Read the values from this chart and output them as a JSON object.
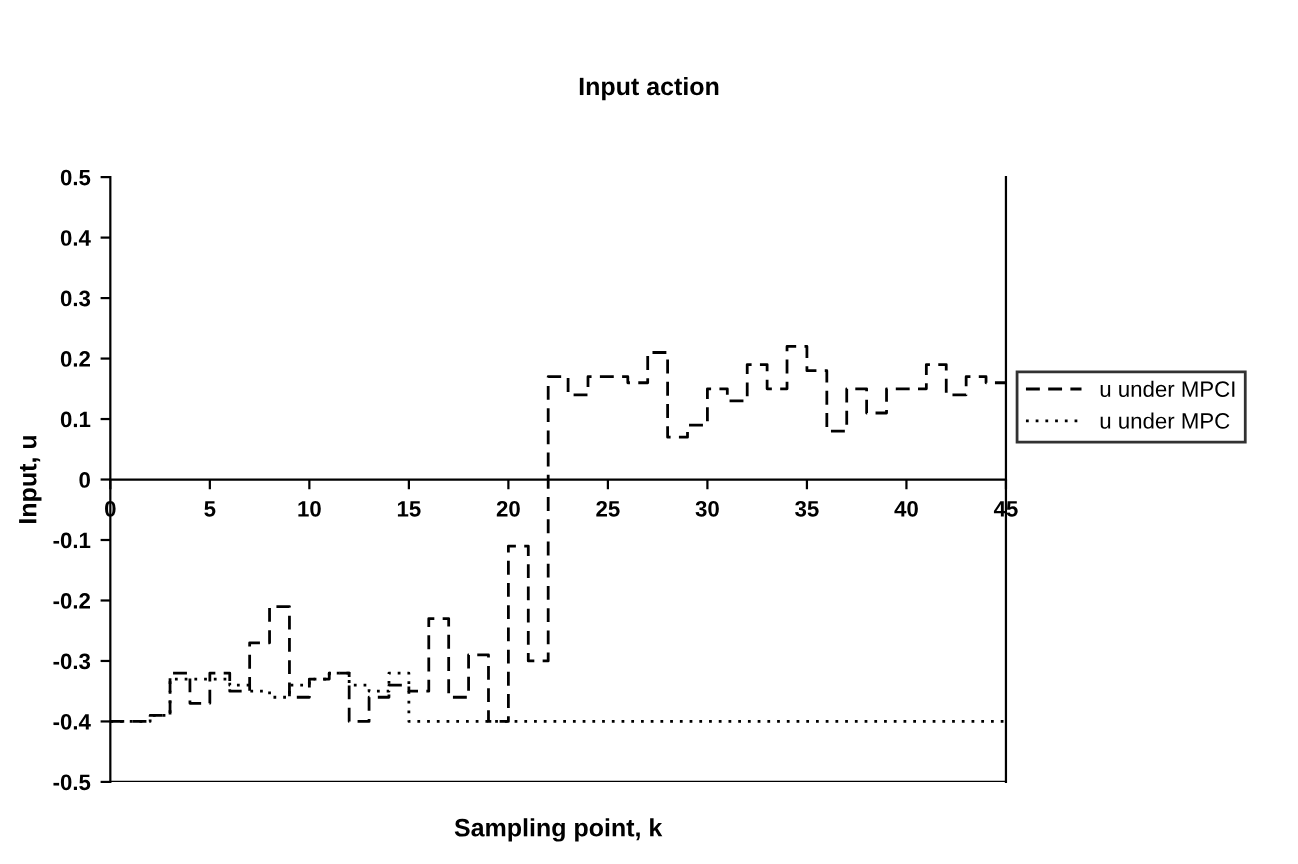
{
  "chart_data": {
    "type": "step",
    "title": "Input action",
    "xlabel": "Sampling point, k",
    "ylabel": "Input, u",
    "x": [
      0,
      1,
      2,
      3,
      4,
      5,
      6,
      7,
      8,
      9,
      10,
      11,
      12,
      13,
      14,
      15,
      16,
      17,
      18,
      19,
      20,
      21,
      22,
      23,
      24,
      25,
      26,
      27,
      28,
      29,
      30,
      31,
      32,
      33,
      34,
      35,
      36,
      37,
      38,
      39,
      40,
      41,
      42,
      43,
      44,
      45
    ],
    "series": [
      {
        "name": "u under MPCI",
        "color": "#000000",
        "line_style": "dashed",
        "values": [
          -0.4,
          -0.4,
          -0.39,
          -0.32,
          -0.37,
          -0.32,
          -0.35,
          -0.27,
          -0.21,
          -0.36,
          -0.33,
          -0.32,
          -0.4,
          -0.36,
          -0.34,
          -0.35,
          -0.23,
          -0.36,
          -0.29,
          -0.4,
          -0.11,
          -0.3,
          0.17,
          0.14,
          0.17,
          0.17,
          0.16,
          0.21,
          0.07,
          0.09,
          0.15,
          0.13,
          0.19,
          0.15,
          0.22,
          0.18,
          0.08,
          0.15,
          0.11,
          0.15,
          0.15,
          0.19,
          0.14,
          0.17,
          0.16,
          0.16
        ]
      },
      {
        "name": "u under MPC",
        "color": "#000000",
        "line_style": "dotted",
        "values": [
          -0.4,
          -0.4,
          -0.39,
          -0.33,
          -0.33,
          -0.33,
          -0.34,
          -0.35,
          -0.36,
          -0.34,
          -0.33,
          -0.32,
          -0.34,
          -0.35,
          -0.32,
          -0.4,
          -0.4,
          -0.4,
          -0.4,
          -0.4,
          -0.4,
          -0.4,
          -0.4,
          -0.4,
          -0.4,
          -0.4,
          -0.4,
          -0.4,
          -0.4,
          -0.4,
          -0.4,
          -0.4,
          -0.4,
          -0.4,
          -0.4,
          -0.4,
          -0.4,
          -0.4,
          -0.4,
          -0.4,
          -0.4,
          -0.4,
          -0.4,
          -0.4,
          -0.4,
          -0.4
        ]
      }
    ],
    "xlim": [
      0,
      45
    ],
    "xticks": [
      0,
      5,
      10,
      15,
      20,
      25,
      30,
      35,
      40,
      45
    ],
    "ylim": [
      -0.5,
      0.5
    ],
    "yticks": [
      {
        "value": -0.5,
        "label": "-0.5"
      },
      {
        "value": -0.4,
        "label": "-0.4"
      },
      {
        "value": -0.3,
        "label": "-0.3"
      },
      {
        "value": -0.2,
        "label": "-0.2"
      },
      {
        "value": -0.1,
        "label": "-0.1"
      },
      0,
      0.1,
      0.2,
      0.3,
      0.4,
      0.5
    ],
    "grid": false,
    "legend": "right"
  }
}
